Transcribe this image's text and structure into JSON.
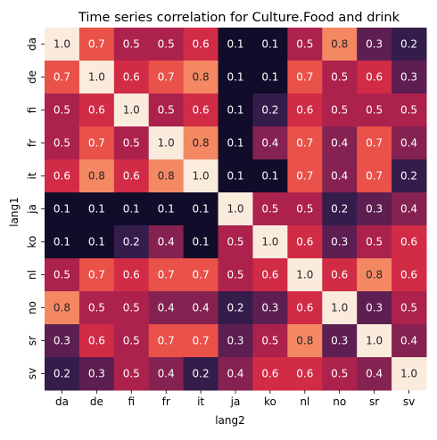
{
  "chart_data": {
    "type": "heatmap",
    "title": "Time series correlation for Culture.Food and drink",
    "xlabel": "lang2",
    "ylabel": "lang1",
    "x_categories": [
      "da",
      "de",
      "fi",
      "fr",
      "it",
      "ja",
      "ko",
      "nl",
      "no",
      "sr",
      "sv"
    ],
    "y_categories": [
      "da",
      "de",
      "fi",
      "fr",
      "it",
      "ja",
      "ko",
      "nl",
      "no",
      "sr",
      "sv"
    ],
    "values": [
      [
        1.0,
        0.7,
        0.5,
        0.5,
        0.6,
        0.1,
        0.1,
        0.5,
        0.8,
        0.3,
        0.2
      ],
      [
        0.7,
        1.0,
        0.6,
        0.7,
        0.8,
        0.1,
        0.1,
        0.7,
        0.5,
        0.6,
        0.3
      ],
      [
        0.5,
        0.6,
        1.0,
        0.5,
        0.6,
        0.1,
        0.2,
        0.6,
        0.5,
        0.5,
        0.5
      ],
      [
        0.5,
        0.7,
        0.5,
        1.0,
        0.8,
        0.1,
        0.4,
        0.7,
        0.4,
        0.7,
        0.4
      ],
      [
        0.6,
        0.8,
        0.6,
        0.8,
        1.0,
        0.1,
        0.1,
        0.7,
        0.4,
        0.7,
        0.2
      ],
      [
        0.1,
        0.1,
        0.1,
        0.1,
        0.1,
        1.0,
        0.5,
        0.5,
        0.2,
        0.3,
        0.4
      ],
      [
        0.1,
        0.1,
        0.2,
        0.4,
        0.1,
        0.5,
        1.0,
        0.6,
        0.3,
        0.5,
        0.6
      ],
      [
        0.5,
        0.7,
        0.6,
        0.7,
        0.7,
        0.5,
        0.6,
        1.0,
        0.6,
        0.8,
        0.6
      ],
      [
        0.8,
        0.5,
        0.5,
        0.4,
        0.4,
        0.2,
        0.3,
        0.6,
        1.0,
        0.3,
        0.5
      ],
      [
        0.3,
        0.6,
        0.5,
        0.7,
        0.7,
        0.3,
        0.5,
        0.8,
        0.3,
        1.0,
        0.4
      ],
      [
        0.2,
        0.3,
        0.5,
        0.4,
        0.2,
        0.4,
        0.6,
        0.6,
        0.5,
        0.4,
        1.0
      ]
    ],
    "value_format": "0.0",
    "colormap": "rocket",
    "colormap_stops": [
      "#03051a",
      "#2b1b4a",
      "#5b1e51",
      "#8a2251",
      "#b9204c",
      "#e13342",
      "#f37651",
      "#f6b28c",
      "#faebdd"
    ],
    "vrange": [
      0.06,
      1.0
    ],
    "annotation_text_color_dark": "#262626",
    "annotation_text_color_light": "#ffffff",
    "grid": false,
    "legend": "none"
  }
}
